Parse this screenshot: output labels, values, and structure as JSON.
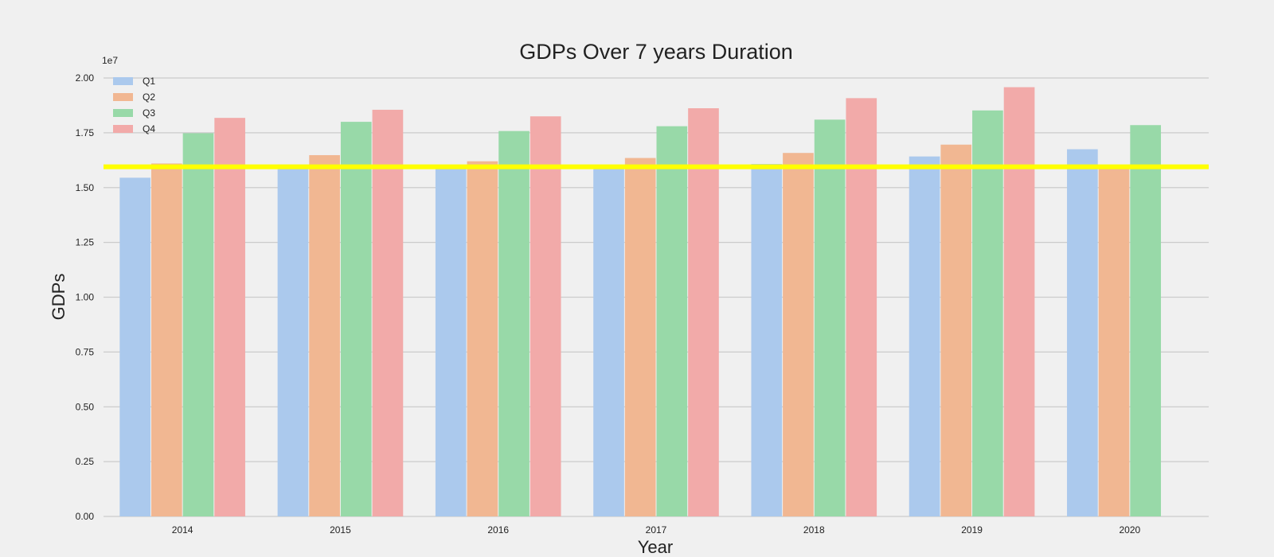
{
  "chart_data": {
    "type": "bar",
    "title": "GDPs Over 7 years Duration",
    "xlabel": "Year",
    "ylabel": "GDPs",
    "y_scale_label": "1e7",
    "categories": [
      "2014",
      "2015",
      "2016",
      "2017",
      "2018",
      "2019",
      "2020"
    ],
    "series": [
      {
        "name": "Q1",
        "color": "#abc9ed",
        "values": [
          15450000,
          16050000,
          15850000,
          15850000,
          16080000,
          16420000,
          16750000
        ]
      },
      {
        "name": "Q2",
        "color": "#f1b792",
        "values": [
          16100000,
          16480000,
          16200000,
          16350000,
          16580000,
          16960000,
          15900000
        ]
      },
      {
        "name": "Q3",
        "color": "#98d9a8",
        "values": [
          17480000,
          18000000,
          17580000,
          17800000,
          18100000,
          18520000,
          17850000
        ]
      },
      {
        "name": "Q4",
        "color": "#f2aaa9",
        "values": [
          18180000,
          18550000,
          18250000,
          18620000,
          19080000,
          19580000,
          null
        ]
      }
    ],
    "ylim": [
      0,
      20000000
    ],
    "yticks": [
      {
        "value": 0,
        "label": "0.00"
      },
      {
        "value": 2500000,
        "label": "0.25"
      },
      {
        "value": 5000000,
        "label": "0.50"
      },
      {
        "value": 7500000,
        "label": "0.75"
      },
      {
        "value": 10000000,
        "label": "1.00"
      },
      {
        "value": 12500000,
        "label": "1.25"
      },
      {
        "value": 15000000,
        "label": "1.50"
      },
      {
        "value": 17500000,
        "label": "1.75"
      },
      {
        "value": 20000000,
        "label": "2.00"
      }
    ],
    "reference_line": {
      "value": 15950000,
      "color": "#ffff00"
    },
    "grid": "horizontal",
    "legend_position": "top-left",
    "gridline_color": "#cbcbcb",
    "background_color": "#f0f0f0"
  }
}
